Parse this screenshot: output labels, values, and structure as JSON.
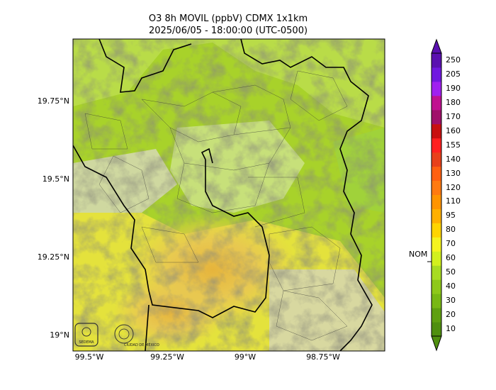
{
  "title_line1": "O3 8h MOVIL (ppbV) CDMX 1x1km",
  "title_line2": "2025/06/05 - 18:00:00 (UTC-0500)",
  "lat_ticks": [
    "19.75°N",
    "19.5°N",
    "19.25°N",
    "19°N"
  ],
  "lon_ticks": [
    "99.5°W",
    "99.25°W",
    "99°W",
    "98.75°W"
  ],
  "colorbar": {
    "labels": [
      "10",
      "20",
      "30",
      "40",
      "50",
      "60",
      "70",
      "80",
      "95",
      "110",
      "120",
      "130",
      "140",
      "155",
      "160",
      "170",
      "180",
      "190",
      "205",
      "250"
    ],
    "colors": [
      "#4f8f0f",
      "#5fa010",
      "#78b814",
      "#8ec81a",
      "#a8dc22",
      "#d2f01e",
      "#f5f31e",
      "#ffd400",
      "#ffb000",
      "#ff9400",
      "#ff7a10",
      "#ff6010",
      "#e8401a",
      "#ff2020",
      "#c81010",
      "#a0106a",
      "#c01090",
      "#a020f0",
      "#7018e0",
      "#5a10b0"
    ],
    "reference_label": "NOM",
    "reference_value": 60
  },
  "logos": {
    "left": "SEDEMA",
    "right": "CIUDAD DE MÉXICO"
  }
}
